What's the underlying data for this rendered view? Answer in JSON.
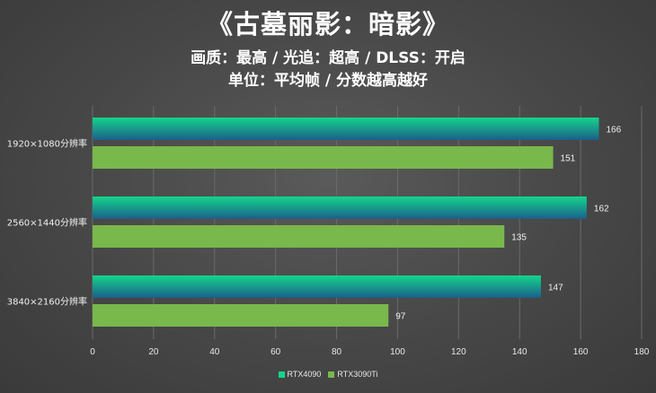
{
  "title": "《古墓丽影：暗影》",
  "subtitle_line1": "画质：最高 / 光追：超高 / DLSS：开启",
  "subtitle_line2": "单位：平均帧 / 分数越高越好",
  "colors": {
    "rtx4090_top": "#14d58c",
    "rtx4090_bottom": "#1b5f8a",
    "rtx3090ti": "#79b84b",
    "gridline": "#6a6a6a"
  },
  "chart_data": {
    "type": "bar",
    "orientation": "horizontal",
    "categories": [
      "1920×1080分辨率",
      "2560×1440分辨率",
      "3840×2160分辨率"
    ],
    "series": [
      {
        "name": "RTX4090",
        "values": [
          166,
          162,
          147
        ]
      },
      {
        "name": "RTX3090Ti",
        "values": [
          151,
          135,
          97
        ]
      }
    ],
    "xlim": [
      0,
      180
    ],
    "xticks": [
      0,
      20,
      40,
      60,
      80,
      100,
      120,
      140,
      160,
      180
    ],
    "grid": true,
    "legend_position": "bottom"
  }
}
